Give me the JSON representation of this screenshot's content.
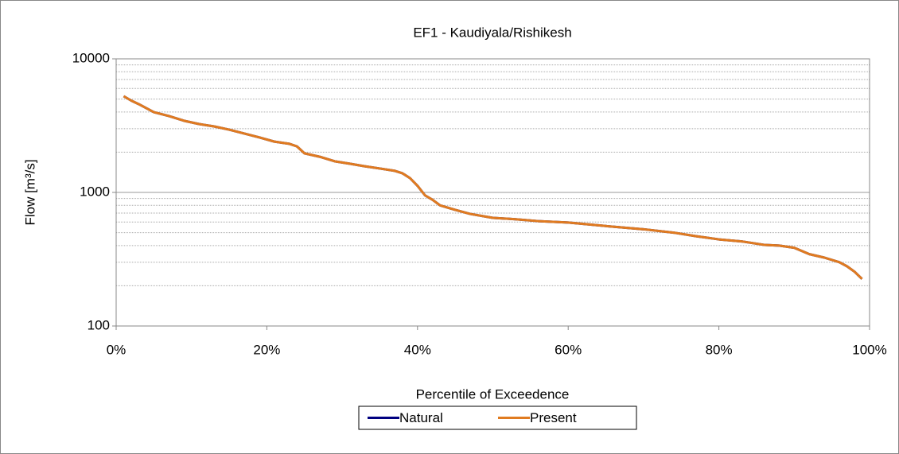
{
  "chart_data": {
    "type": "line",
    "title": "EF1 - Kaudiyala/Rishikesh",
    "x_label": "Percentile of Exceedence",
    "y_label": "Flow [m³/s]",
    "x": [
      1,
      2,
      3,
      5,
      7,
      9,
      11,
      13,
      15,
      17,
      19,
      21,
      23,
      24,
      25,
      27,
      29,
      31,
      33,
      35,
      37,
      38,
      39,
      40,
      41,
      42,
      43,
      45,
      47,
      50,
      53,
      56,
      60,
      65,
      70,
      74,
      77,
      80,
      83,
      86,
      88,
      90,
      92,
      94,
      96,
      97,
      98,
      99
    ],
    "series": [
      {
        "name": "Natural",
        "color": "#000080",
        "values": [
          5250,
          4870,
          4580,
          3990,
          3730,
          3440,
          3250,
          3120,
          2950,
          2760,
          2580,
          2400,
          2310,
          2210,
          1960,
          1850,
          1710,
          1640,
          1570,
          1510,
          1450,
          1390,
          1280,
          1120,
          950,
          880,
          800,
          740,
          690,
          645,
          630,
          610,
          595,
          560,
          530,
          500,
          470,
          445,
          430,
          405,
          400,
          385,
          345,
          325,
          300,
          280,
          255,
          225
        ]
      },
      {
        "name": "Present",
        "color": "#e07b20",
        "values": [
          5250,
          4870,
          4580,
          3990,
          3730,
          3440,
          3250,
          3120,
          2950,
          2760,
          2580,
          2400,
          2310,
          2210,
          1960,
          1850,
          1710,
          1640,
          1570,
          1510,
          1450,
          1390,
          1280,
          1120,
          950,
          880,
          800,
          740,
          690,
          645,
          630,
          610,
          595,
          560,
          530,
          500,
          470,
          445,
          430,
          405,
          400,
          385,
          345,
          325,
          300,
          280,
          255,
          225
        ]
      }
    ],
    "xlim": [
      0,
      100
    ],
    "xticks": [
      {
        "value": 0,
        "label": "0%"
      },
      {
        "value": 20,
        "label": "20%"
      },
      {
        "value": 40,
        "label": "40%"
      },
      {
        "value": 60,
        "label": "60%"
      },
      {
        "value": 80,
        "label": "80%"
      },
      {
        "value": 100,
        "label": "100%"
      }
    ],
    "ylim": [
      100,
      10000
    ],
    "yscale": "log",
    "yticks": [
      100,
      1000,
      10000
    ],
    "minor_yticks": [
      200,
      300,
      400,
      500,
      600,
      700,
      800,
      900,
      2000,
      3000,
      4000,
      5000,
      6000,
      7000,
      8000,
      9000
    ],
    "grid": true,
    "legend": "bottom"
  }
}
